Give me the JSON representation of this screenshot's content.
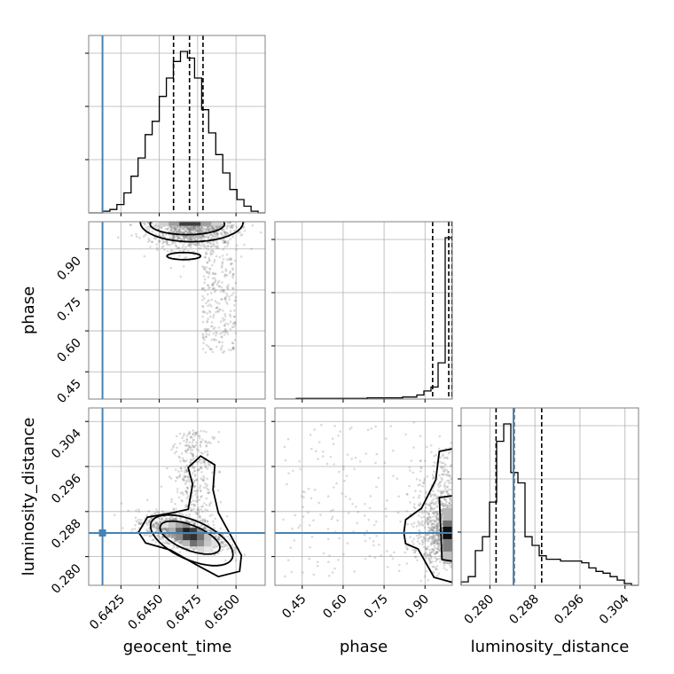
{
  "colors": {
    "truth": "#4682b4",
    "hist": "#000000",
    "grid": "#b0b0b0",
    "scatter": "#7f7f7f"
  },
  "chart_data": {
    "type": "corner",
    "parameters": [
      {
        "name": "geocent_time",
        "label": "geocent_time",
        "range": [
          0.6404,
          0.6519
        ],
        "ticks": [
          0.6425,
          0.645,
          0.6475,
          0.65
        ],
        "tick_labels": [
          "0.6425",
          "0.6450",
          "0.6475",
          "0.6500"
        ],
        "truth": 0.6413
      },
      {
        "name": "phase",
        "label": "phase",
        "range": [
          0.35,
          1.0
        ],
        "ticks": [
          0.45,
          0.6,
          0.75,
          0.9
        ],
        "tick_labels": [
          "0.45",
          "0.60",
          "0.75",
          "0.90"
        ],
        "truth": null
      },
      {
        "name": "luminosity_distance",
        "label": "luminosity_distance",
        "range": [
          0.2749,
          0.3064
        ],
        "ticks": [
          0.28,
          0.288,
          0.296,
          0.304
        ],
        "tick_labels": [
          "0.280",
          "0.288",
          "0.296",
          "0.304"
        ],
        "truth": 0.2842
      }
    ],
    "histograms": [
      {
        "param": "geocent_time",
        "quantiles": [
          0.64593,
          0.64697,
          0.64785
        ],
        "bins": [
          0.6404,
          0.64086,
          0.64132,
          0.64178,
          0.64224,
          0.6427,
          0.64316,
          0.64362,
          0.64408,
          0.64454,
          0.645,
          0.64546,
          0.64592,
          0.64638,
          0.64684,
          0.6473,
          0.64776,
          0.64822,
          0.64868,
          0.64914,
          0.6496,
          0.65006,
          0.65052,
          0.65098,
          0.65144,
          0.6519
        ],
        "counts": [
          0,
          0,
          1,
          2,
          5,
          12,
          22,
          33,
          47,
          55,
          70,
          81,
          91,
          97,
          93,
          81,
          62,
          48,
          35,
          24,
          14,
          8,
          4,
          1,
          0
        ]
      },
      {
        "param": "phase",
        "quantiles": [
          0.928,
          0.987,
          0.999
        ],
        "bins": [
          0.35,
          0.376,
          0.402,
          0.428,
          0.454,
          0.48,
          0.506,
          0.532,
          0.558,
          0.584,
          0.61,
          0.636,
          0.662,
          0.688,
          0.714,
          0.74,
          0.766,
          0.792,
          0.818,
          0.844,
          0.87,
          0.896,
          0.922,
          0.948,
          0.974,
          1.0
        ],
        "counts": [
          0,
          0,
          0,
          0.3,
          0.3,
          0.3,
          0.3,
          0.3,
          0.3,
          0.3,
          0.3,
          0.3,
          0.3,
          0.6,
          0.6,
          0.6,
          0.6,
          0.6,
          1,
          1,
          2,
          4,
          6,
          18,
          80
        ]
      },
      {
        "param": "luminosity_distance",
        "quantiles": [
          0.2811,
          0.2843,
          0.2892
        ],
        "bins": [
          0.2749,
          0.27616,
          0.27742,
          0.27868,
          0.27994,
          0.2812,
          0.28246,
          0.28372,
          0.28498,
          0.28624,
          0.2875,
          0.28876,
          0.29002,
          0.29128,
          0.29254,
          0.2938,
          0.29506,
          0.29632,
          0.29758,
          0.29884,
          0.3001,
          0.30136,
          0.30262,
          0.30388,
          0.30514,
          0.3064
        ],
        "counts": [
          2,
          5,
          20,
          28,
          48,
          83,
          93,
          65,
          59,
          28,
          23,
          17,
          15,
          15,
          14,
          14,
          14,
          13,
          10,
          8,
          7,
          5,
          3,
          1,
          0
        ]
      }
    ],
    "pairs": [
      {
        "x": "geocent_time",
        "y": "phase",
        "truth": [
          0.6413,
          null
        ],
        "density_peak": [
          0.647,
          0.985
        ]
      },
      {
        "x": "geocent_time",
        "y": "luminosity_distance",
        "truth": [
          0.6413,
          0.2842
        ],
        "density_peak": [
          0.647,
          0.284
        ]
      },
      {
        "x": "phase",
        "y": "luminosity_distance",
        "truth": [
          null,
          0.2842
        ],
        "density_peak": [
          0.985,
          0.2842
        ]
      }
    ]
  }
}
